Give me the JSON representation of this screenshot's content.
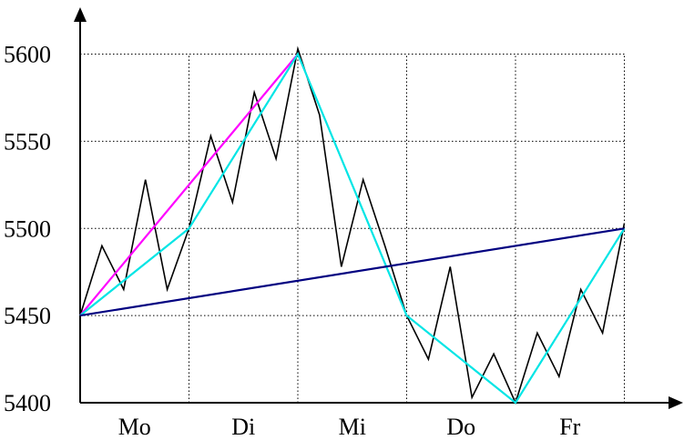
{
  "chart_data": {
    "type": "line",
    "title": "",
    "xlabel": "",
    "ylabel": "",
    "categories": [
      "Mo",
      "Di",
      "Mi",
      "Do",
      "Fr"
    ],
    "yticks": [
      5400,
      5450,
      5500,
      5550,
      5600
    ],
    "ylim": [
      5400,
      5600
    ],
    "xlim": [
      0,
      5
    ],
    "grid": true,
    "legend": "none",
    "series": [
      {
        "color": "#000000",
        "x": [
          0,
          0.2,
          0.4,
          0.6,
          0.8,
          1.0,
          1.2,
          1.4,
          1.6,
          1.8,
          2.0,
          2.2,
          2.4,
          2.6,
          2.8,
          3.0,
          3.2,
          3.4,
          3.6,
          3.8,
          4.0,
          4.2,
          4.4,
          4.6,
          4.8,
          5.0
        ],
        "values": [
          5450,
          5490,
          5465,
          5528,
          5465,
          5500,
          5553,
          5515,
          5578,
          5540,
          5603,
          5565,
          5478,
          5528,
          5490,
          5450,
          5425,
          5478,
          5403,
          5428,
          5400,
          5440,
          5415,
          5465,
          5440,
          5503
        ]
      },
      {
        "color": "#ff00ff",
        "x": [
          0,
          2.0
        ],
        "values": [
          5450,
          5600
        ]
      },
      {
        "color": "#00e5e5",
        "x": [
          0,
          1.0,
          2.0,
          3.0,
          4.0,
          5.0
        ],
        "values": [
          5450,
          5500,
          5600,
          5450,
          5400,
          5500
        ]
      },
      {
        "color": "#000080",
        "x": [
          0,
          5.0
        ],
        "values": [
          5450,
          5500
        ]
      }
    ]
  }
}
